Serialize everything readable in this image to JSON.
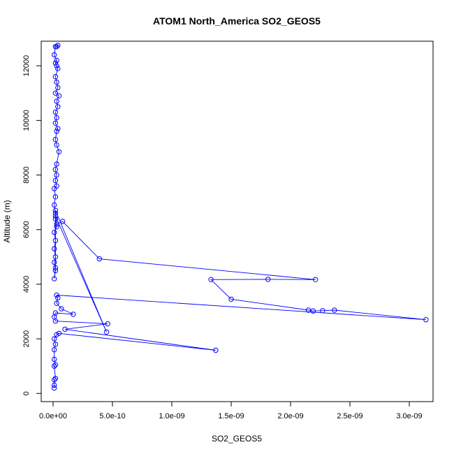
{
  "chart_data": {
    "type": "line",
    "title": "ATOM1 North_America SO2_GEOS5",
    "xlabel": "SO2_GEOS5",
    "ylabel": "Altitude (m)",
    "xlim": [
      -1e-10,
      3.2e-09
    ],
    "ylim": [
      -300,
      12900
    ],
    "x_ticks": [
      0,
      5e-10,
      1e-09,
      1.5e-09,
      2e-09,
      2.5e-09,
      3e-09
    ],
    "x_tick_labels": [
      "0.0e+00",
      "5.0e-10",
      "1.0e-09",
      "1.5e-09",
      "2.0e-09",
      "2.5e-09",
      "3.0e-09"
    ],
    "y_ticks": [
      0,
      2000,
      4000,
      6000,
      8000,
      10000,
      12000
    ],
    "y_tick_labels": [
      "0",
      "2000",
      "4000",
      "6000",
      "8000",
      "10000",
      "12000"
    ],
    "grid": false,
    "series_color": "#0000ff",
    "series": [
      {
        "marker": "open-circle",
        "points": [
          [
            1e-11,
            200
          ],
          [
            1e-11,
            300
          ],
          [
            1e-11,
            500
          ],
          [
            2e-11,
            550
          ],
          [
            1e-11,
            1000
          ],
          [
            2e-11,
            1050
          ],
          [
            1e-11,
            1250
          ],
          [
            1e-11,
            1600
          ],
          [
            2e-11,
            1800
          ],
          [
            1e-11,
            2000
          ],
          [
            3e-11,
            2150
          ],
          [
            5e-11,
            2200
          ],
          [
            1.37e-09,
            1580
          ],
          [
            1e-10,
            2350
          ],
          [
            4.6e-10,
            2550
          ],
          [
            2e-11,
            2650
          ],
          [
            1e-11,
            2800
          ],
          [
            2e-11,
            2950
          ],
          [
            1.7e-10,
            2900
          ],
          [
            7e-11,
            3100
          ],
          [
            3e-11,
            3300
          ],
          [
            4e-11,
            3500
          ],
          [
            3e-11,
            3600
          ],
          [
            3.14e-09,
            2700
          ],
          [
            2.37e-09,
            3050
          ],
          [
            2.27e-09,
            3030
          ],
          [
            2.19e-09,
            3020
          ],
          [
            2.15e-09,
            3050
          ],
          [
            1.5e-09,
            3450
          ],
          [
            1.33e-09,
            4170
          ],
          [
            1.81e-09,
            4180
          ],
          [
            2.21e-09,
            4170
          ],
          [
            3.9e-10,
            4930
          ],
          [
            8e-11,
            6300
          ],
          [
            3e-11,
            6200
          ],
          [
            2e-11,
            6400
          ],
          [
            2e-11,
            6700
          ],
          [
            4.5e-10,
            2250
          ],
          [
            2e-11,
            6500
          ],
          [
            2e-11,
            4600
          ],
          [
            1e-11,
            4200
          ],
          [
            2e-11,
            4500
          ],
          [
            1e-11,
            4800
          ],
          [
            2e-11,
            5000
          ],
          [
            1e-11,
            5300
          ],
          [
            2e-11,
            5600
          ],
          [
            1e-11,
            5900
          ],
          [
            3e-11,
            6100
          ],
          [
            2e-11,
            6600
          ],
          [
            1e-11,
            6900
          ],
          [
            2e-11,
            7200
          ],
          [
            1e-11,
            7500
          ],
          [
            3e-11,
            7600
          ],
          [
            2e-11,
            7800
          ],
          [
            3e-11,
            8000
          ],
          [
            2e-11,
            8200
          ],
          [
            3e-11,
            8400
          ],
          [
            5e-11,
            8850
          ],
          [
            3e-11,
            9100
          ],
          [
            2e-11,
            9300
          ],
          [
            3e-11,
            9600
          ],
          [
            4e-11,
            9700
          ],
          [
            2e-11,
            9900
          ],
          [
            3e-11,
            10100
          ],
          [
            2e-11,
            10300
          ],
          [
            4e-11,
            10500
          ],
          [
            3e-11,
            10700
          ],
          [
            5e-11,
            10900
          ],
          [
            2e-11,
            11000
          ],
          [
            4e-11,
            11200
          ],
          [
            3e-11,
            11400
          ],
          [
            2e-11,
            11600
          ],
          [
            4e-11,
            11900
          ],
          [
            3e-11,
            12000
          ],
          [
            2e-11,
            12100
          ],
          [
            3e-11,
            12200
          ],
          [
            1e-11,
            12400
          ],
          [
            2e-11,
            12700
          ],
          [
            3e-11,
            12700
          ],
          [
            4e-11,
            12750
          ]
        ]
      }
    ]
  }
}
